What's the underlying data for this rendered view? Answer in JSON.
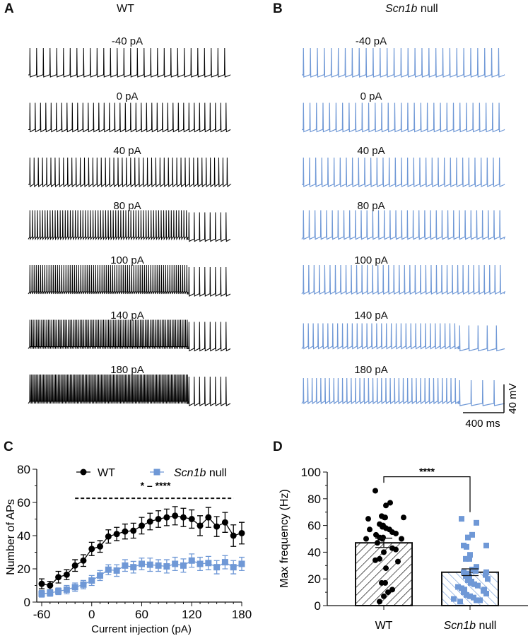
{
  "panels": {
    "A": {
      "letter": "A",
      "title": "WT",
      "color": "#000000"
    },
    "B": {
      "letter": "B",
      "title_italic": "Scn1b",
      "title_rest": " null",
      "color": "#6f98d6"
    },
    "C": {
      "letter": "C"
    },
    "D": {
      "letter": "D"
    }
  },
  "traces": {
    "labels": [
      "-40 pA",
      "0 pA",
      "40 pA",
      "80 pA",
      "100 pA",
      "140 pA",
      "180 pA"
    ]
  },
  "scale_bar": {
    "voltage": "40 mV",
    "time": "400 ms"
  },
  "chart_data": [
    {
      "type": "line",
      "panel": "C",
      "xlabel": "Current injection (pA)",
      "ylabel": "Number of APs",
      "xlim": [
        -60,
        180
      ],
      "ylim": [
        0,
        80
      ],
      "xticks": [
        -60,
        0,
        60,
        120,
        180
      ],
      "yticks": [
        0,
        20,
        40,
        60,
        80
      ],
      "grid": false,
      "legend": "top",
      "significance": "* – ****",
      "significance_range": [
        -20,
        170
      ],
      "x": [
        -60,
        -50,
        -40,
        -30,
        -20,
        -10,
        0,
        10,
        20,
        30,
        40,
        50,
        60,
        70,
        80,
        90,
        100,
        110,
        120,
        130,
        140,
        150,
        160,
        170,
        180
      ],
      "series": [
        {
          "name": "WT",
          "marker": "circle",
          "color": "#000000",
          "values": [
            11,
            10,
            15,
            16.5,
            22,
            25,
            32,
            33.5,
            39.5,
            41,
            42.5,
            43,
            46,
            48.5,
            50,
            51,
            52,
            51,
            50,
            46,
            51,
            45.5,
            48,
            40,
            41.5
          ],
          "errors": [
            3,
            2.5,
            3.5,
            3,
            3.5,
            3.5,
            4,
            3.5,
            4,
            4,
            4.5,
            4.5,
            5,
            5,
            5,
            5,
            5.5,
            5.5,
            5.5,
            6,
            6,
            6,
            6,
            6.5,
            6.5
          ]
        },
        {
          "name_italic": "Scn1b",
          "name": " null",
          "marker": "square",
          "color": "#6f98d6",
          "values": [
            5,
            5.5,
            6.5,
            7.5,
            9,
            10.5,
            13,
            16,
            19.5,
            19,
            22,
            21,
            23,
            22.5,
            22,
            21.5,
            23,
            22,
            25,
            23,
            23.5,
            21,
            24,
            21,
            23
          ],
          "errors": [
            2,
            2,
            2,
            2.5,
            2.5,
            2.5,
            3,
            3,
            3,
            3.5,
            3.5,
            3.5,
            3.5,
            4,
            3.5,
            4,
            4,
            4,
            4,
            4,
            4,
            4,
            4,
            4,
            4
          ]
        }
      ]
    },
    {
      "type": "bar",
      "panel": "D",
      "ylabel": "Max frequency (Hz)",
      "ylim": [
        0,
        100
      ],
      "yticks": [
        0,
        20,
        40,
        60,
        80,
        100
      ],
      "categories": [
        "WT",
        "Scn1b null"
      ],
      "category_labels": [
        {
          "text": "WT"
        },
        {
          "italic": "Scn1b",
          "rest": " null"
        }
      ],
      "values": [
        47,
        25
      ],
      "sem": [
        3.5,
        2.5
      ],
      "colors": [
        "#000000",
        "#6f98d6"
      ],
      "significance": "****",
      "points": [
        [
          86,
          77,
          75,
          67,
          66,
          66,
          66,
          65,
          61,
          60,
          59,
          58,
          57,
          57,
          55,
          54,
          53,
          51,
          51,
          50,
          50,
          50,
          47,
          43,
          42,
          40,
          35,
          34,
          33,
          28,
          17,
          17,
          12,
          10,
          7,
          3
        ],
        [
          65,
          62,
          53,
          51,
          45,
          45,
          44,
          38,
          35,
          35,
          29,
          27,
          26,
          25,
          25,
          24,
          23,
          22,
          22,
          20,
          20,
          19,
          18,
          17,
          16,
          15,
          14,
          13,
          12,
          12,
          11,
          10,
          9,
          8,
          7,
          6,
          5,
          4,
          4,
          3
        ]
      ]
    }
  ]
}
